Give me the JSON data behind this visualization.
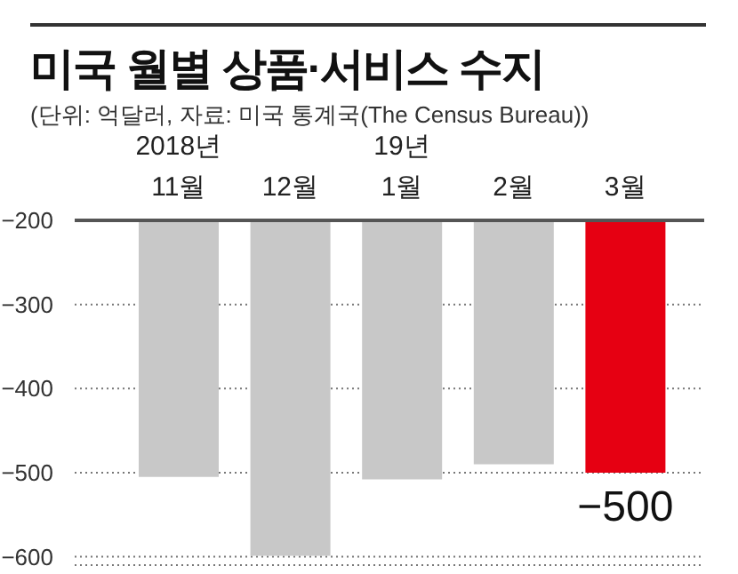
{
  "chart_data": {
    "type": "bar",
    "title": "미국 월별 상품·서비스 수지",
    "subtitle": "(단위: 억달러, 자료: 미국 통계국(The Census Bureau))",
    "categories": [
      "2018년\n11월",
      "12월",
      "19년\n1월",
      "2월",
      "3월"
    ],
    "values": [
      -505,
      -599,
      -508,
      -490,
      -500
    ],
    "colors": [
      "#c8c8c8",
      "#c8c8c8",
      "#c8c8c8",
      "#c8c8c8",
      "#e60012"
    ],
    "value_labels": [
      null,
      null,
      null,
      null,
      "−500"
    ],
    "ylim": [
      -610,
      -200
    ],
    "yticks": [
      {
        "value": -200,
        "label": "−200"
      },
      {
        "value": -300,
        "label": "−300"
      },
      {
        "value": -400,
        "label": "−400"
      },
      {
        "value": -500,
        "label": "−500"
      },
      {
        "value": -600,
        "label": "−600"
      }
    ],
    "grid": "y",
    "legend": false
  }
}
